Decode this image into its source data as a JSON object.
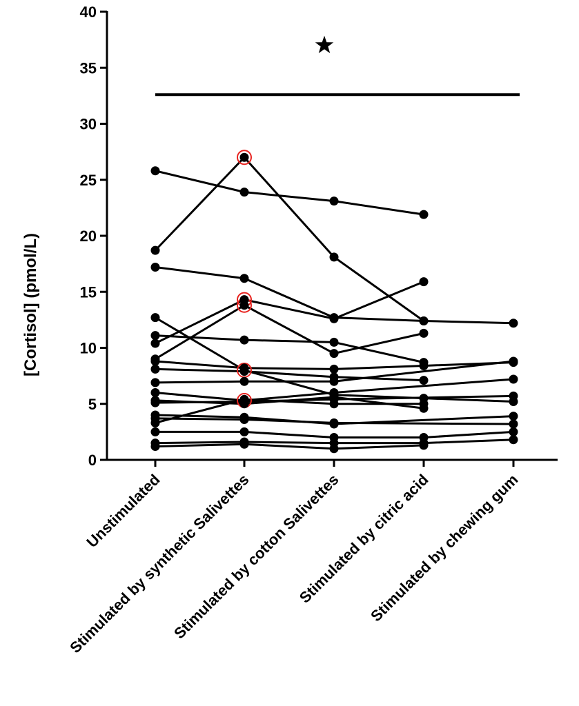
{
  "chart_data": {
    "type": "line",
    "title": "",
    "xlabel": "",
    "ylabel": "[Cortisol] (pmol/L)",
    "ylim": [
      0,
      40
    ],
    "yticks": [
      0,
      5,
      10,
      15,
      20,
      25,
      30,
      35,
      40
    ],
    "categories": [
      "Unstimulated",
      "Stimulated by synthetic Salivettes",
      "Stimulated by cotton Salivettes",
      "Stimulated by citric acid",
      "Stimulated by chewing gum"
    ],
    "grid": false,
    "legend": "none",
    "colors": {
      "series": "#000000",
      "highlight": "#e8231f",
      "axis": "#000000"
    },
    "significance": {
      "bar_y": 32.6,
      "from_category": 0,
      "to_category": 4,
      "marker_icon": "star-icon",
      "marker_y": 37
    },
    "series": [
      {
        "values": [
          25.8,
          23.9,
          23.1,
          21.9,
          null
        ]
      },
      {
        "values": [
          18.7,
          27.0,
          18.1,
          12.4,
          12.2
        ]
      },
      {
        "values": [
          17.2,
          16.2,
          12.7,
          12.4,
          null
        ]
      },
      {
        "values": [
          12.7,
          8.0,
          5.8,
          5.5,
          5.2
        ]
      },
      {
        "values": [
          11.1,
          10.7,
          10.5,
          8.7,
          null
        ]
      },
      {
        "values": [
          10.4,
          14.3,
          12.6,
          15.9,
          null
        ]
      },
      {
        "values": [
          9.0,
          13.8,
          9.5,
          11.3,
          null
        ]
      },
      {
        "values": [
          8.8,
          8.2,
          8.1,
          8.4,
          8.7
        ]
      },
      {
        "values": [
          8.1,
          7.9,
          7.4,
          7.1,
          null
        ]
      },
      {
        "values": [
          6.9,
          7.0,
          7.0,
          null,
          8.8
        ]
      },
      {
        "values": [
          6.0,
          5.3,
          6.0,
          null,
          7.2
        ]
      },
      {
        "values": [
          5.3,
          5.0,
          5.6,
          4.6,
          null
        ]
      },
      {
        "values": [
          5.1,
          5.2,
          5.4,
          null,
          5.7
        ]
      },
      {
        "values": [
          3.3,
          5.4,
          5.0,
          5.0,
          null
        ]
      },
      {
        "values": [
          4.0,
          3.8,
          3.2,
          null,
          3.9
        ]
      },
      {
        "values": [
          3.7,
          3.6,
          3.3,
          null,
          3.2
        ]
      },
      {
        "values": [
          2.5,
          2.5,
          2.0,
          2.0,
          2.5
        ]
      },
      {
        "values": [
          1.5,
          1.6,
          1.5,
          1.5,
          1.8
        ]
      },
      {
        "values": [
          1.2,
          1.4,
          1.0,
          1.3,
          null
        ]
      }
    ],
    "highlighted_points": [
      {
        "category": 1,
        "value": 27.0
      },
      {
        "category": 1,
        "value": 14.3
      },
      {
        "category": 1,
        "value": 13.8
      },
      {
        "category": 1,
        "value": 8.0
      },
      {
        "category": 1,
        "value": 5.3
      }
    ]
  }
}
